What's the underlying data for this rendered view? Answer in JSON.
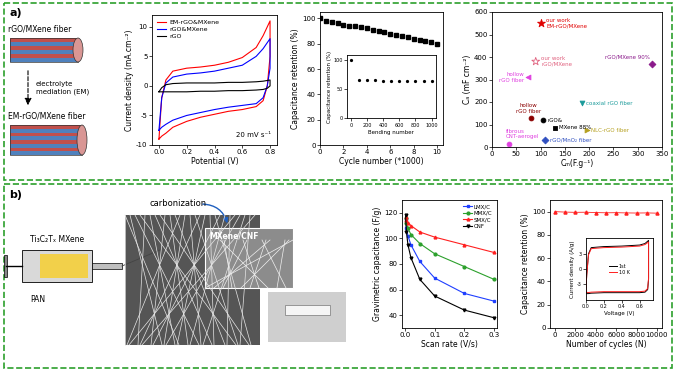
{
  "panels": [
    {
      "label": "a)",
      "diagram": {
        "fiber_before": "rGO/MXene fiber",
        "process": "electrolyte\nmediation (EM)",
        "fiber_after": "EM-rGO/MXene fiber"
      }
    },
    {
      "label": "b)",
      "diagram": {
        "precursor": "Ti₃C₂Tₓ MXene",
        "polymer": "PAN",
        "process": "carbonization",
        "product": "MXene/CNF"
      }
    }
  ],
  "chart_data": [
    {
      "type": "line",
      "x_label": "Potential (V)",
      "y_label": "Current density (mA.cm⁻²)",
      "annotation": "20 mV s⁻¹",
      "x": [
        0.0,
        0.02,
        0.05,
        0.1,
        0.2,
        0.3,
        0.4,
        0.5,
        0.6,
        0.7,
        0.75,
        0.8,
        0.8,
        0.78,
        0.75,
        0.7,
        0.6,
        0.5,
        0.4,
        0.3,
        0.2,
        0.1,
        0.05,
        0.02,
        0.0
      ],
      "xlim": [
        -0.05,
        0.85
      ],
      "xticks": [
        0.0,
        0.2,
        0.4,
        0.6,
        0.8
      ],
      "ylim": [
        -10,
        12
      ],
      "yticks": [
        -10,
        -5,
        0,
        5,
        10
      ],
      "legend": "upper left",
      "series": [
        {
          "name": "EM-rGO&MXene",
          "color": "#ff0000",
          "line_style": "solid",
          "values": [
            -9,
            -2,
            1,
            2.5,
            3,
            3.2,
            3.5,
            4,
            4.8,
            6.5,
            8.5,
            11,
            5,
            0,
            -2.5,
            -3.5,
            -4,
            -4.3,
            -4.8,
            -5.3,
            -6,
            -7,
            -8,
            -8.5,
            -9
          ]
        },
        {
          "name": "rGO&MXene",
          "color": "#0000ff",
          "line_style": "solid",
          "values": [
            -7.5,
            -2,
            0.5,
            1.5,
            2,
            2.2,
            2.5,
            3,
            3.5,
            5,
            6.3,
            8,
            3,
            0,
            -2,
            -3,
            -3.3,
            -3.6,
            -4,
            -4.5,
            -5,
            -5.8,
            -6.5,
            -7,
            -7.5
          ]
        },
        {
          "name": "rGO",
          "color": "#000000",
          "line_style": "solid",
          "values": [
            -1,
            -0.3,
            0.2,
            0.4,
            0.5,
            0.5,
            0.5,
            0.6,
            0.6,
            0.7,
            0.8,
            1,
            0,
            -0.4,
            -0.6,
            -0.7,
            -0.8,
            -0.8,
            -0.9,
            -0.9,
            -1,
            -1,
            -1,
            -1,
            -1
          ]
        }
      ]
    },
    {
      "type": "scatter",
      "x_label": "Cycle number (*1000)",
      "y_label": "Capacitance retention (%)",
      "x": [
        0,
        0.5,
        1,
        1.5,
        2,
        2.5,
        3,
        3.5,
        4,
        4.5,
        5,
        5.5,
        6,
        6.5,
        7,
        7.5,
        8,
        8.5,
        9,
        9.5,
        10
      ],
      "xlim": [
        0,
        10.5
      ],
      "xticks": [
        0,
        2,
        4,
        6,
        8,
        10
      ],
      "ylim": [
        0,
        105
      ],
      "yticks": [
        0,
        20,
        40,
        60,
        80,
        100
      ],
      "series": [
        {
          "color": "#000000",
          "marker": "square",
          "line_style": "none",
          "values": [
            100,
            98,
            97,
            96,
            95,
            94,
            94,
            93,
            92,
            91,
            90,
            89,
            88,
            87,
            86,
            85,
            84,
            83,
            82,
            81,
            80
          ]
        }
      ],
      "inset": {
        "type": "scatter",
        "x_label": "Bending number",
        "y_label": "Capacitance retention (%)",
        "x": [
          0,
          100,
          200,
          300,
          400,
          500,
          600,
          700,
          800,
          900,
          1000
        ],
        "xlim": [
          -50,
          1050
        ],
        "xticks": [
          0,
          200,
          400,
          600,
          800,
          1000
        ],
        "ylim": [
          0,
          110
        ],
        "yticks": [
          0,
          50,
          100
        ],
        "series": [
          {
            "color": "#000000",
            "marker": "circle",
            "line_style": "none",
            "values": [
              100,
              67,
              66,
              66,
              65,
              65,
              65,
              64,
              64,
              64,
              64
            ]
          }
        ]
      }
    },
    {
      "type": "scatter",
      "x_label": "Cₘ(F.g⁻¹)",
      "y_label": "Cₐ (mF cm⁻²)",
      "xlim": [
        0,
        350
      ],
      "xticks": [
        0,
        50,
        100,
        150,
        200,
        250,
        300,
        350
      ],
      "ylim": [
        0,
        600
      ],
      "yticks": [
        0,
        100,
        200,
        300,
        400,
        500,
        600
      ],
      "points": [
        {
          "name": "our work\nEM-rGO/MXene",
          "x": 100,
          "y": 550,
          "color": "#e00000",
          "marker": "star"
        },
        {
          "name": "our work\nrGO/MXene",
          "x": 90,
          "y": 380,
          "color": "#e0607e",
          "marker": "open_star"
        },
        {
          "name": "rGO/MXene 90%",
          "x": 330,
          "y": 370,
          "color": "#8b1a8b",
          "marker": "diamond"
        },
        {
          "name": "hollow\nrGO fiber",
          "x": 75,
          "y": 310,
          "color": "#e040e0",
          "marker": "triangle_left"
        },
        {
          "name": "hollow\nrGO fiber",
          "x": 80,
          "y": 130,
          "color": "#8b0000",
          "marker": "circle"
        },
        {
          "name": "rGO&",
          "x": 105,
          "y": 120,
          "color": "#000000",
          "marker": "circle"
        },
        {
          "name": "coaxial rGO fiber",
          "x": 185,
          "y": 195,
          "color": "#1a9a9a",
          "marker": "triangle_down"
        },
        {
          "name": "MXene 88%",
          "x": 130,
          "y": 85,
          "color": "#000000",
          "marker": "square"
        },
        {
          "name": "NLC-rGO fiber",
          "x": 195,
          "y": 75,
          "color": "#b5a020",
          "marker": "triangle_right"
        },
        {
          "name": "fibrous\nCNT-aerogel",
          "x": 35,
          "y": 15,
          "color": "#e040e0",
          "marker": "circle"
        },
        {
          "name": "rGO/MnO₂ fiber",
          "x": 110,
          "y": 30,
          "color": "#3050c0",
          "marker": "diamond"
        }
      ]
    },
    {
      "type": "line",
      "x_label": "Scan rate (V/s)",
      "y_label": "Gravimetric capacitance (F/g)",
      "x": [
        0.002,
        0.005,
        0.01,
        0.02,
        0.05,
        0.1,
        0.2,
        0.3
      ],
      "xlim": [
        -0.01,
        0.31
      ],
      "xticks": [
        0.0,
        0.1,
        0.2,
        0.3
      ],
      "ylim": [
        30,
        130
      ],
      "yticks": [
        40,
        60,
        80,
        100,
        120
      ],
      "legend": "upper right",
      "series": [
        {
          "name": "LMX/C",
          "color": "#1f3fff",
          "marker": "square",
          "line_style": "solid",
          "values": [
            115,
            108,
            102,
            95,
            82,
            69,
            57,
            51
          ]
        },
        {
          "name": "MMX/C",
          "color": "#2ca02c",
          "marker": "circle",
          "line_style": "solid",
          "values": [
            116,
            112,
            108,
            103,
            96,
            88,
            78,
            68
          ]
        },
        {
          "name": "SMX/C",
          "color": "#ff2020",
          "marker": "triangle",
          "line_style": "solid",
          "values": [
            117,
            114,
            112,
            110,
            105,
            101,
            95,
            89
          ]
        },
        {
          "name": "CNF",
          "color": "#000000",
          "marker": "triangle_down",
          "line_style": "solid",
          "values": [
            118,
            105,
            95,
            85,
            68,
            55,
            44,
            38
          ]
        }
      ]
    },
    {
      "type": "scatter",
      "x_label": "Number of cycles (N)",
      "y_label": "Capacitance retention (%)",
      "x": [
        0,
        1000,
        2000,
        3000,
        4000,
        5000,
        6000,
        7000,
        8000,
        9000,
        10000
      ],
      "xlim": [
        -500,
        10500
      ],
      "xticks": [
        0,
        2000,
        4000,
        6000,
        8000,
        10000
      ],
      "ylim": [
        0,
        110
      ],
      "yticks": [
        0,
        20,
        40,
        60,
        80,
        100
      ],
      "series": [
        {
          "color": "#ff2020",
          "marker": "triangle",
          "line_style": "solid",
          "values": [
            100,
            99.6,
            99.4,
            99.5,
            99.2,
            99.0,
            99.1,
            98.9,
            98.8,
            98.9,
            98.7
          ]
        }
      ],
      "inset": {
        "type": "line",
        "x_label": "Voltage (V)",
        "y_label": "Current density (A/g)",
        "x": [
          0.0,
          0.01,
          0.03,
          0.06,
          0.2,
          0.4,
          0.6,
          0.66,
          0.7,
          0.7,
          0.69,
          0.66,
          0.6,
          0.4,
          0.2,
          0.06,
          0.02,
          0.0
        ],
        "xlim": [
          0,
          0.75
        ],
        "xticks": [
          0.0,
          0.2,
          0.4,
          0.6
        ],
        "ylim": [
          -6,
          6
        ],
        "yticks": [
          -3,
          0,
          3
        ],
        "legend": "center",
        "series": [
          {
            "name": "1st",
            "color": "#000000",
            "line_style": "solid",
            "values": [
              -4.6,
              -1.0,
              3.0,
              4.2,
              4.4,
              4.5,
              4.7,
              5.0,
              5.6,
              -2.0,
              -4.0,
              -4.5,
              -4.6,
              -4.6,
              -4.6,
              -4.7,
              -4.8,
              -4.6
            ]
          },
          {
            "name": "10 K",
            "color": "#ff2020",
            "line_style": "solid",
            "values": [
              -4.4,
              -1.2,
              2.8,
              4.0,
              4.2,
              4.3,
              4.5,
              4.8,
              5.3,
              -1.8,
              -3.8,
              -4.3,
              -4.4,
              -4.4,
              -4.4,
              -4.5,
              -4.6,
              -4.4
            ]
          }
        ]
      }
    }
  ]
}
